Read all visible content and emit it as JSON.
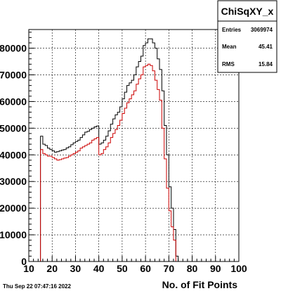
{
  "datestamp": "Thu Sep 22 07:47:16 2022",
  "stats": {
    "title": "ChiSqXY_x",
    "rows": [
      {
        "label": "Entries",
        "value": "3069974"
      },
      {
        "label": "Mean",
        "value": "45.41"
      },
      {
        "label": "RMS",
        "value": "15.84"
      }
    ]
  },
  "chart_data": {
    "type": "line",
    "step": true,
    "title": "",
    "xlabel": "No. of Fit Points",
    "ylabel": "",
    "xlim": [
      10,
      100
    ],
    "ylim": [
      0,
      87000
    ],
    "grid": true,
    "x_ticks": [
      10,
      20,
      30,
      40,
      50,
      60,
      70,
      80,
      90,
      100
    ],
    "y_ticks": [
      0,
      10000,
      20000,
      30000,
      40000,
      50000,
      60000,
      70000,
      80000
    ],
    "x": [
      15,
      16,
      17,
      18,
      19,
      20,
      21,
      22,
      23,
      24,
      25,
      26,
      27,
      28,
      29,
      30,
      31,
      32,
      33,
      34,
      35,
      36,
      37,
      38,
      39,
      40,
      41,
      42,
      43,
      44,
      45,
      46,
      47,
      48,
      49,
      50,
      51,
      52,
      53,
      54,
      55,
      56,
      57,
      58,
      59,
      60,
      61,
      62,
      63,
      64,
      65,
      66,
      67,
      68,
      69,
      70,
      71,
      72,
      73,
      74,
      75
    ],
    "series": [
      {
        "color": "#000000",
        "values": [
          47000,
          44000,
          43500,
          42500,
          42000,
          41500,
          41000,
          41200,
          41500,
          41800,
          42000,
          42600,
          43000,
          43800,
          44500,
          45000,
          45500,
          46500,
          47500,
          48500,
          48800,
          49500,
          50000,
          50500,
          50800,
          44000,
          44500,
          45500,
          47000,
          49000,
          51500,
          53500,
          55000,
          56000,
          58000,
          61000,
          63500,
          66000,
          67000,
          68000,
          70000,
          73000,
          75000,
          77000,
          81000,
          82000,
          83500,
          83500,
          82000,
          80000,
          76000,
          72000,
          64000,
          51000,
          40000,
          28000,
          20000,
          12000,
          2000,
          0,
          0
        ]
      },
      {
        "color": "#cc0000",
        "values": [
          42000,
          40500,
          40000,
          39500,
          39500,
          39000,
          38500,
          38000,
          38200,
          38500,
          38800,
          39000,
          39500,
          40000,
          40500,
          41000,
          41500,
          42500,
          43000,
          43500,
          44000,
          44500,
          45500,
          46000,
          46500,
          40000,
          40500,
          42000,
          43000,
          44500,
          46500,
          48000,
          49500,
          51000,
          53000,
          55500,
          57500,
          59500,
          61000,
          62500,
          64000,
          66500,
          68500,
          70000,
          73000,
          73500,
          74000,
          73500,
          71500,
          68000,
          64500,
          60500,
          50000,
          38500,
          27500,
          19000,
          13000,
          8000,
          0,
          0,
          0
        ]
      }
    ]
  }
}
